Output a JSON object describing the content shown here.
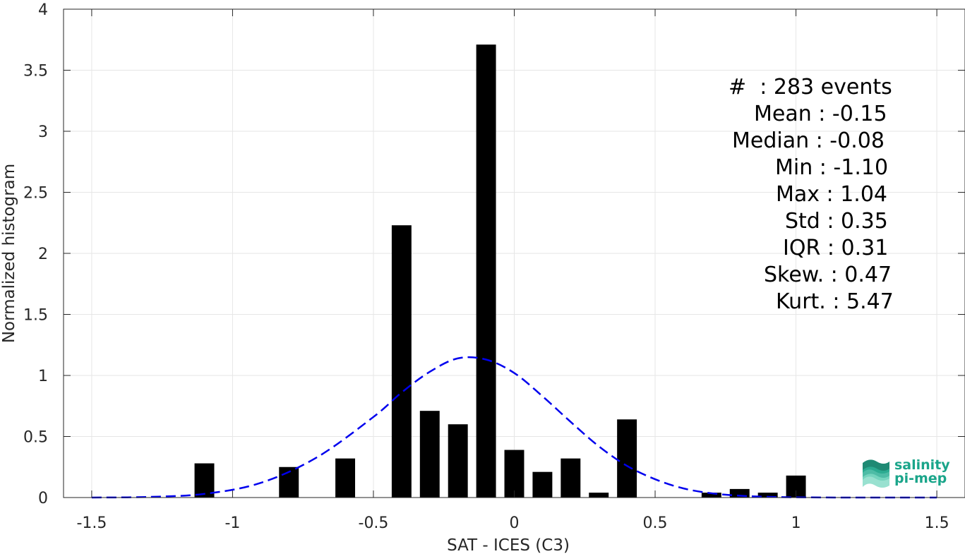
{
  "chart_data": {
    "type": "bar",
    "xlabel": "SAT - ICES (C3)",
    "ylabel": "Normalized histogram",
    "xlim": [
      -1.6,
      1.6
    ],
    "ylim": [
      0,
      4
    ],
    "xticks": [
      -1.5,
      -1,
      -0.5,
      0,
      0.5,
      1,
      1.5
    ],
    "xtick_labels": [
      "-1.5",
      "-1",
      "-0.5",
      "0",
      "0.5",
      "1",
      "1.5"
    ],
    "yticks": [
      0,
      0.5,
      1,
      1.5,
      2,
      2.5,
      3,
      3.5,
      4
    ],
    "ytick_labels": [
      "0",
      "0.5",
      "1",
      "1.5",
      "2",
      "2.5",
      "3",
      "3.5",
      "4"
    ],
    "grid": true,
    "bar_width": 0.07,
    "bars": [
      {
        "x": -1.1,
        "y": 0.28
      },
      {
        "x": -0.8,
        "y": 0.25
      },
      {
        "x": -0.6,
        "y": 0.32
      },
      {
        "x": -0.4,
        "y": 2.23
      },
      {
        "x": -0.3,
        "y": 0.71
      },
      {
        "x": -0.2,
        "y": 0.6
      },
      {
        "x": -0.1,
        "y": 3.71
      },
      {
        "x": 0.0,
        "y": 0.39
      },
      {
        "x": 0.1,
        "y": 0.21
      },
      {
        "x": 0.2,
        "y": 0.32
      },
      {
        "x": 0.3,
        "y": 0.04
      },
      {
        "x": 0.4,
        "y": 0.64
      },
      {
        "x": 0.7,
        "y": 0.04
      },
      {
        "x": 0.8,
        "y": 0.07
      },
      {
        "x": 0.9,
        "y": 0.04
      },
      {
        "x": 1.0,
        "y": 0.18
      }
    ],
    "fit_curve": {
      "style": "dashed",
      "color": "#0000ee",
      "points": [
        [
          -1.5,
          0.0
        ],
        [
          -1.3,
          0.005
        ],
        [
          -1.1,
          0.03
        ],
        [
          -0.9,
          0.12
        ],
        [
          -0.7,
          0.33
        ],
        [
          -0.5,
          0.66
        ],
        [
          -0.4,
          0.86
        ],
        [
          -0.3,
          1.03
        ],
        [
          -0.2,
          1.14
        ],
        [
          -0.1,
          1.13
        ],
        [
          0.0,
          1.02
        ],
        [
          0.1,
          0.83
        ],
        [
          0.2,
          0.62
        ],
        [
          0.3,
          0.42
        ],
        [
          0.4,
          0.26
        ],
        [
          0.5,
          0.15
        ],
        [
          0.6,
          0.075
        ],
        [
          0.7,
          0.035
        ],
        [
          0.8,
          0.015
        ],
        [
          0.9,
          0.006
        ],
        [
          1.0,
          0.002
        ],
        [
          1.2,
          0.0
        ],
        [
          1.5,
          0.0
        ]
      ]
    }
  },
  "stats": [
    {
      "label": "#  : 283 events",
      "key": "count"
    },
    {
      "label": "Mean : -0.15",
      "key": "mean"
    },
    {
      "label": "Median : -0.08",
      "key": "median"
    },
    {
      "label": "Min : -1.10",
      "key": "min"
    },
    {
      "label": "Max : 1.04",
      "key": "max"
    },
    {
      "label": "Std : 0.35",
      "key": "std"
    },
    {
      "label": "IQR : 0.31",
      "key": "iqr"
    },
    {
      "label": "Skew. : 0.47",
      "key": "skew"
    },
    {
      "label": "Kurt. : 5.47",
      "key": "kurt"
    }
  ],
  "logo": {
    "line1": "salinity",
    "line2": "pi-mep"
  },
  "colors": {
    "bars": "#000000",
    "fit": "#0000ee",
    "grid": "#e6e6e6",
    "logo": "#1aa58a"
  }
}
